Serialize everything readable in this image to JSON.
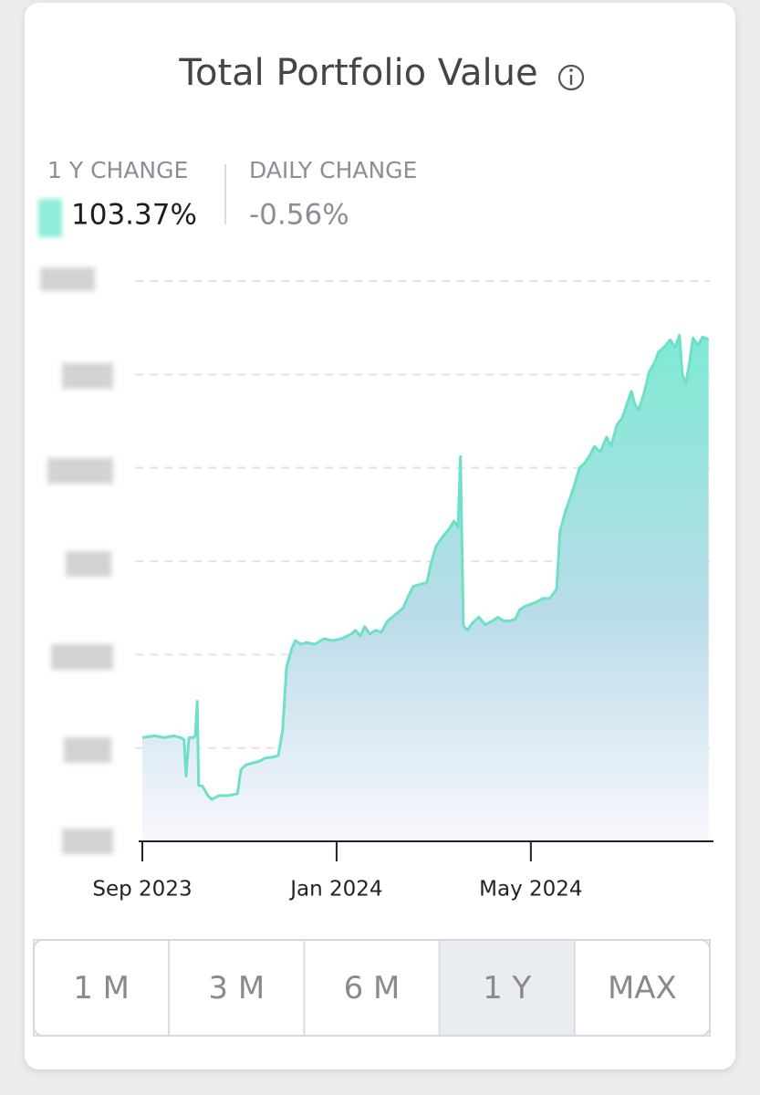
{
  "header": {
    "title": "Total Portfolio Value"
  },
  "stats": [
    {
      "label": "1 Y CHANGE",
      "value": "103.37%"
    },
    {
      "label": "DAILY CHANGE",
      "value": "-0.56%"
    }
  ],
  "chart_data": {
    "type": "area",
    "color": "#6fe0c8",
    "x": [
      0,
      0.26,
      0.45,
      0.64,
      0.79,
      0.86,
      0.9,
      0.96,
      1.05,
      1.09,
      1.13,
      1.16,
      1.24,
      1.35,
      1.43,
      1.58,
      1.77,
      1.96,
      2.03,
      2.14,
      2.29,
      2.42,
      2.52,
      2.67,
      2.8,
      2.89,
      2.97,
      3.08,
      3.15,
      3.27,
      3.38,
      3.55,
      3.74,
      3.92,
      4.11,
      4.3,
      4.39,
      4.49,
      4.58,
      4.68,
      4.81,
      4.92,
      5.05,
      5.24,
      5.37,
      5.48,
      5.58,
      5.71,
      5.86,
      5.93,
      6.05,
      6.18,
      6.31,
      6.42,
      6.5,
      6.55,
      6.61,
      6.69,
      6.8,
      6.93,
      7.06,
      7.21,
      7.32,
      7.44,
      7.55,
      7.68,
      7.77,
      7.89,
      8.0,
      8.11,
      8.24,
      8.39,
      8.53,
      8.6,
      8.71,
      8.81,
      8.9,
      9.0,
      9.09,
      9.2,
      9.31,
      9.43,
      9.56,
      9.65,
      9.77,
      9.88,
      9.99,
      10.07,
      10.14,
      10.22,
      10.33,
      10.44,
      10.55,
      10.63,
      10.74,
      10.87,
      10.97,
      11.06,
      11.12,
      11.19,
      11.27,
      11.34,
      11.44,
      11.53,
      11.6,
      11.66
    ],
    "values": [
      1.11,
      1.13,
      1.11,
      1.13,
      1.11,
      1.09,
      0.7,
      1.11,
      1.11,
      1.13,
      1.5,
      0.6,
      0.59,
      0.49,
      0.45,
      0.49,
      0.49,
      0.51,
      0.77,
      0.82,
      0.84,
      0.86,
      0.89,
      0.9,
      0.92,
      1.19,
      1.87,
      2.07,
      2.15,
      2.11,
      2.13,
      2.11,
      2.17,
      2.15,
      2.17,
      2.22,
      2.26,
      2.2,
      2.3,
      2.22,
      2.26,
      2.24,
      2.36,
      2.44,
      2.5,
      2.63,
      2.73,
      2.75,
      2.77,
      2.95,
      3.16,
      3.26,
      3.34,
      3.43,
      3.36,
      4.12,
      2.31,
      2.26,
      2.34,
      2.4,
      2.32,
      2.36,
      2.4,
      2.36,
      2.36,
      2.38,
      2.48,
      2.52,
      2.54,
      2.56,
      2.6,
      2.6,
      2.7,
      3.32,
      3.53,
      3.68,
      3.82,
      4.0,
      4.04,
      4.12,
      4.23,
      4.17,
      4.33,
      4.23,
      4.46,
      4.53,
      4.7,
      4.82,
      4.68,
      4.62,
      4.8,
      5.03,
      5.13,
      5.24,
      5.29,
      5.37,
      5.29,
      5.42,
      5.0,
      4.9,
      5.14,
      5.39,
      5.31,
      5.4,
      5.39,
      5.37
    ],
    "xlim": [
      0,
      11.76
    ],
    "xticks": [
      {
        "value": 0,
        "label": "Sep 2023"
      },
      {
        "value": 4,
        "label": "Jan 2024"
      },
      {
        "value": 8,
        "label": "May 2024"
      }
    ],
    "ylim": [
      0,
      6
    ],
    "yticks": [
      1,
      2,
      3,
      4,
      5,
      6
    ],
    "grid": true
  },
  "range_buttons": {
    "options": [
      "1 M",
      "3 M",
      "6 M",
      "1 Y",
      "MAX"
    ],
    "selected": 3
  }
}
